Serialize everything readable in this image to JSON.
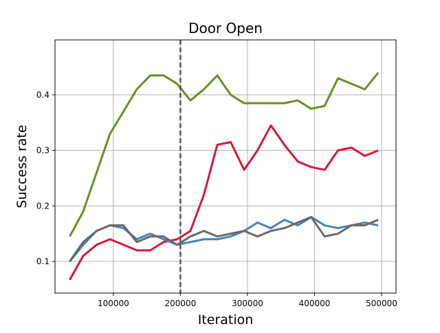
{
  "chart_data": {
    "type": "line",
    "title": "Door Open",
    "x_label": "Iteration",
    "y_label": "Success rate",
    "x": [
      35000,
      55000,
      75000,
      95000,
      115000,
      135000,
      155000,
      175000,
      195000,
      215000,
      235000,
      255000,
      275000,
      295000,
      315000,
      335000,
      355000,
      375000,
      395000,
      415000,
      435000,
      455000,
      475000,
      495000
    ],
    "series": [
      {
        "color": "#6b8e23",
        "values": [
          0.145,
          0.19,
          0.26,
          0.33,
          0.37,
          0.41,
          0.435,
          0.435,
          0.42,
          0.39,
          0.41,
          0.435,
          0.4,
          0.385,
          0.385,
          0.385,
          0.385,
          0.39,
          0.375,
          0.38,
          0.43,
          0.42,
          0.41,
          0.44
        ]
      },
      {
        "color": "#dc143c",
        "values": [
          0.067,
          0.11,
          0.13,
          0.14,
          0.13,
          0.12,
          0.12,
          0.135,
          0.14,
          0.155,
          0.22,
          0.31,
          0.315,
          0.265,
          0.3,
          0.345,
          0.31,
          0.28,
          0.27,
          0.265,
          0.3,
          0.305,
          0.29,
          0.3
        ]
      },
      {
        "color": "#4682b4",
        "values": [
          0.1,
          0.13,
          0.155,
          0.165,
          0.16,
          0.14,
          0.15,
          0.14,
          0.13,
          0.135,
          0.14,
          0.14,
          0.145,
          0.155,
          0.17,
          0.16,
          0.175,
          0.165,
          0.18,
          0.165,
          0.16,
          0.165,
          0.17,
          0.165
        ]
      },
      {
        "color": "#696969",
        "values": [
          0.1,
          0.135,
          0.155,
          0.165,
          0.165,
          0.135,
          0.145,
          0.145,
          0.13,
          0.145,
          0.155,
          0.145,
          0.15,
          0.155,
          0.145,
          0.155,
          0.16,
          0.17,
          0.18,
          0.145,
          0.15,
          0.165,
          0.165,
          0.175
        ]
      }
    ],
    "vline": 200000,
    "xlim": [
      13000,
      521500
    ],
    "ylim": [
      0.043,
      0.499
    ],
    "xticks": [
      100000,
      200000,
      300000,
      400000,
      500000
    ],
    "yticks": [
      0.1,
      0.2,
      0.3,
      0.4
    ],
    "grid": true
  }
}
